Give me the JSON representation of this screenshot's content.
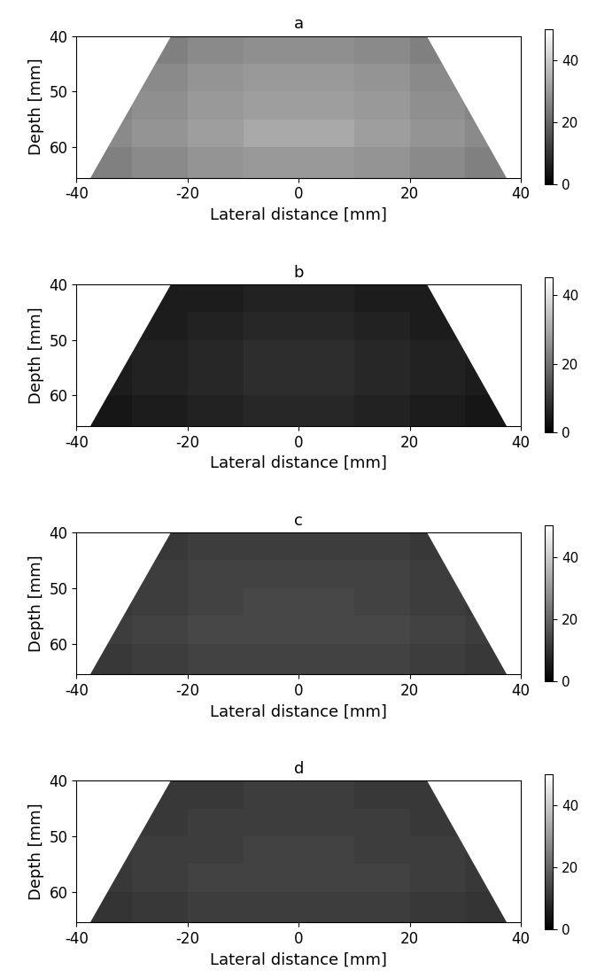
{
  "chart_data": [
    {
      "type": "heatmap",
      "title": "a",
      "x_label": "Lateral distance [mm]",
      "y_label": "Depth [mm]",
      "xlim": [
        -40,
        40
      ],
      "ylim": [
        65.5,
        40
      ],
      "xticks": [
        -40,
        -20,
        0,
        20,
        40
      ],
      "yticks": [
        40,
        50,
        60
      ],
      "color": "gray",
      "field_of_view": {
        "top_depth": 40,
        "bottom_depth": 65.5,
        "top_x": [
          -23,
          23
        ],
        "bottom_x": [
          -37.5,
          37.5
        ]
      },
      "x_edges": [
        -40,
        -30,
        -20,
        -10,
        0,
        10,
        20,
        30,
        40
      ],
      "y_edges": [
        40,
        45,
        50,
        55,
        60,
        65.5
      ],
      "cells": [
        [
          24,
          25,
          27,
          28,
          28,
          27,
          25,
          24
        ],
        [
          25,
          27,
          29,
          30,
          30,
          29,
          27,
          25
        ],
        [
          26,
          28,
          30,
          31,
          31,
          30,
          28,
          26
        ],
        [
          27,
          29,
          31,
          33,
          33,
          31,
          29,
          27
        ],
        [
          25,
          27,
          29,
          30,
          30,
          29,
          27,
          25
        ]
      ],
      "colorbar_lim": [
        0,
        50
      ],
      "colorbar_ticks": [
        0,
        20,
        40
      ]
    },
    {
      "type": "heatmap",
      "title": "b",
      "x_label": "Lateral distance [mm]",
      "y_label": "Depth [mm]",
      "xlim": [
        -40,
        40
      ],
      "ylim": [
        65.5,
        40
      ],
      "xticks": [
        -40,
        -20,
        0,
        20,
        40
      ],
      "yticks": [
        40,
        50,
        60
      ],
      "color": "gray",
      "field_of_view": {
        "top_depth": 40,
        "bottom_depth": 65.5,
        "top_x": [
          -23,
          23
        ],
        "bottom_x": [
          -37.5,
          37.5
        ]
      },
      "x_edges": [
        -40,
        -30,
        -20,
        -10,
        0,
        10,
        20,
        30,
        40
      ],
      "y_edges": [
        40,
        45,
        50,
        55,
        60,
        65.5
      ],
      "cells": [
        [
          4,
          5,
          5,
          6,
          6,
          5,
          5,
          4
        ],
        [
          5,
          5,
          6,
          7,
          7,
          6,
          5,
          5
        ],
        [
          5,
          6,
          7,
          8,
          8,
          7,
          6,
          5
        ],
        [
          5,
          6,
          7,
          8,
          8,
          7,
          6,
          5
        ],
        [
          4,
          5,
          6,
          7,
          7,
          6,
          5,
          4
        ]
      ],
      "colorbar_lim": [
        0,
        45
      ],
      "colorbar_ticks": [
        0,
        20,
        40
      ]
    },
    {
      "type": "heatmap",
      "title": "c",
      "x_label": "Lateral distance [mm]",
      "y_label": "Depth [mm]",
      "xlim": [
        -40,
        40
      ],
      "ylim": [
        65.5,
        40
      ],
      "xticks": [
        -40,
        -20,
        0,
        20,
        40
      ],
      "yticks": [
        40,
        50,
        60
      ],
      "color": "gray",
      "field_of_view": {
        "top_depth": 40,
        "bottom_depth": 65.5,
        "top_x": [
          -23,
          23
        ],
        "bottom_x": [
          -37.5,
          37.5
        ]
      },
      "x_edges": [
        -40,
        -30,
        -20,
        -10,
        0,
        10,
        20,
        30,
        40
      ],
      "y_edges": [
        40,
        45,
        50,
        55,
        60,
        65.5
      ],
      "cells": [
        [
          10,
          11,
          12,
          12,
          12,
          12,
          11,
          10
        ],
        [
          11,
          12,
          13,
          13,
          13,
          13,
          12,
          11
        ],
        [
          11,
          12,
          13,
          14,
          14,
          13,
          12,
          11
        ],
        [
          12,
          13,
          14,
          14,
          14,
          14,
          13,
          12
        ],
        [
          11,
          12,
          13,
          13,
          13,
          13,
          12,
          11
        ]
      ],
      "colorbar_lim": [
        0,
        50
      ],
      "colorbar_ticks": [
        0,
        20,
        40
      ]
    },
    {
      "type": "heatmap",
      "title": "d",
      "x_label": "Lateral distance [mm]",
      "y_label": "Depth [mm]",
      "xlim": [
        -40,
        40
      ],
      "ylim": [
        65.5,
        40
      ],
      "xticks": [
        -40,
        -20,
        0,
        20,
        40
      ],
      "yticks": [
        40,
        50,
        60
      ],
      "color": "gray",
      "field_of_view": {
        "top_depth": 40,
        "bottom_depth": 65.5,
        "top_x": [
          -23,
          23
        ],
        "bottom_x": [
          -37.5,
          37.5
        ]
      },
      "x_edges": [
        -40,
        -30,
        -20,
        -10,
        0,
        10,
        20,
        30,
        40
      ],
      "y_edges": [
        40,
        45,
        50,
        55,
        60,
        65.5
      ],
      "cells": [
        [
          10,
          11,
          11,
          12,
          12,
          11,
          11,
          10
        ],
        [
          10,
          11,
          12,
          12,
          12,
          12,
          11,
          10
        ],
        [
          11,
          12,
          12,
          13,
          13,
          12,
          12,
          11
        ],
        [
          11,
          12,
          13,
          13,
          13,
          13,
          12,
          11
        ],
        [
          10,
          11,
          12,
          12,
          12,
          12,
          11,
          10
        ]
      ],
      "colorbar_lim": [
        0,
        50
      ],
      "colorbar_ticks": [
        0,
        20,
        40
      ]
    }
  ]
}
